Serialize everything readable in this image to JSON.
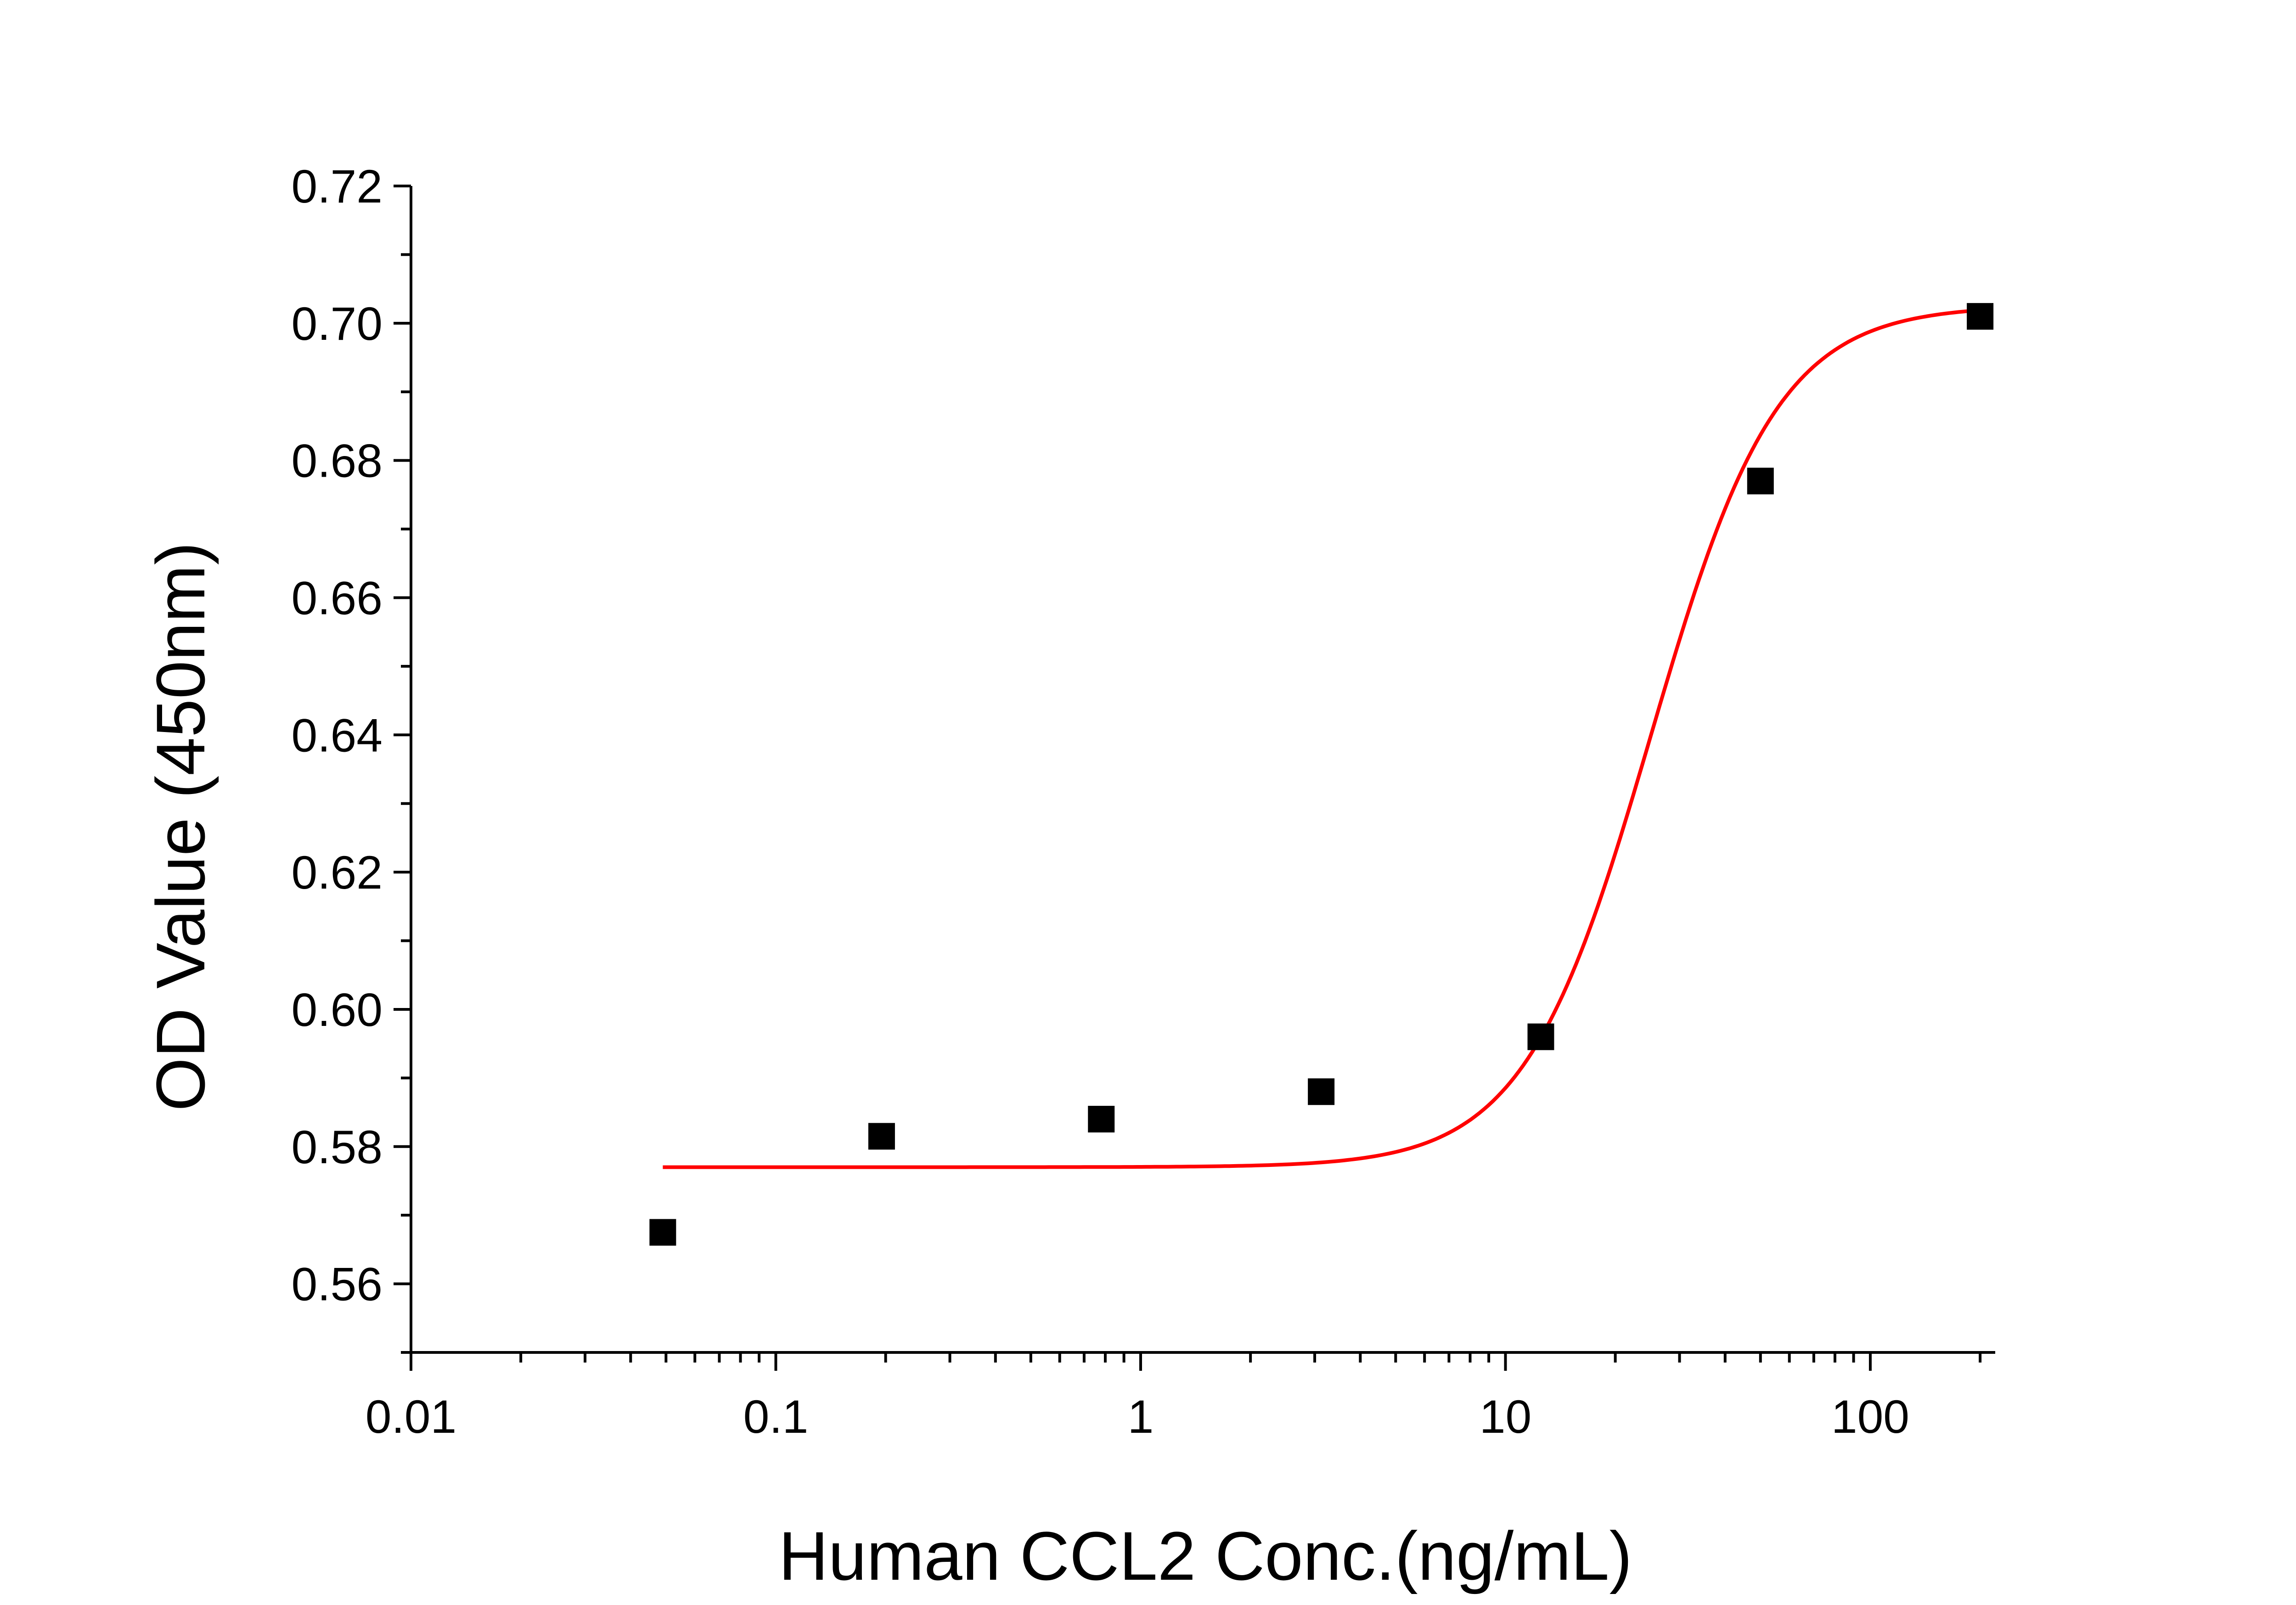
{
  "chart_data": {
    "type": "scatter",
    "xlabel": "Human CCL2 Conc.(ng/mL)",
    "ylabel": "OD Value (450nm)",
    "xscale": "log",
    "xlim": [
      0.01,
      220
    ],
    "ylim": [
      0.55,
      0.72
    ],
    "x_ticks": [
      0.01,
      0.1,
      1,
      10,
      100
    ],
    "x_tick_labels": [
      "0.01",
      "0.1",
      "1",
      "10",
      "100"
    ],
    "y_ticks": [
      0.56,
      0.58,
      0.6,
      0.62,
      0.64,
      0.66,
      0.68,
      0.7,
      0.72
    ],
    "y_tick_labels": [
      "0.56",
      "0.58",
      "0.60",
      "0.62",
      "0.64",
      "0.66",
      "0.68",
      "0.70",
      "0.72"
    ],
    "grid": false,
    "legend": "none",
    "series": [
      {
        "kind": "points",
        "marker": "square",
        "color": "#000000",
        "x": [
          0.049,
          0.195,
          0.78,
          3.125,
          12.5,
          50,
          200
        ],
        "y": [
          0.5675,
          0.5815,
          0.584,
          0.588,
          0.596,
          0.677,
          0.701
        ]
      },
      {
        "kind": "fit-curve",
        "model": "4PL",
        "color": "#ff0000",
        "params": {
          "bottom": 0.577,
          "top": 0.7026,
          "ec50": 25,
          "hill": 2.5
        },
        "x_range": [
          0.049,
          200
        ]
      }
    ]
  }
}
